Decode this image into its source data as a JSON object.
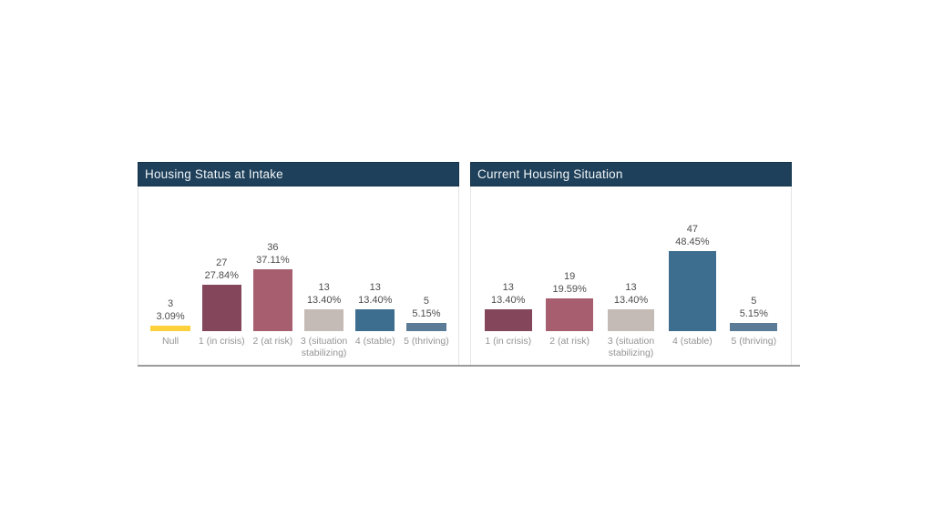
{
  "theme": {
    "header_bg": "#1e405a",
    "header_border": "#16334a",
    "header_text": "#f2f5f7",
    "chart_border": "#e5e5e5",
    "value_label_color": "#4d4d4d",
    "axis_label_color": "#949494",
    "divider_color": "#9b9b9b",
    "page_bg": "#ffffff"
  },
  "chart_data": [
    {
      "type": "bar",
      "title": "Housing Status at Intake",
      "categories": [
        "Null",
        "1 (in crisis)",
        "2 (at risk)",
        "3 (situation stabilizing)",
        "4 (stable)",
        "5 (thriving)"
      ],
      "values": [
        3,
        27,
        36,
        13,
        13,
        5
      ],
      "count_labels": [
        "3",
        "27",
        "36",
        "13",
        "13",
        "5"
      ],
      "pct_labels": [
        "3.09%",
        "27.84%",
        "37.11%",
        "13.40%",
        "13.40%",
        "5.15%"
      ],
      "bar_colors": [
        "#fcd13b",
        "#84465a",
        "#a75f70",
        "#c4bbb6",
        "#3d6e8f",
        "#5a7c96"
      ],
      "xlabel": "",
      "ylabel": "",
      "ylim": [
        0,
        50
      ],
      "grid": false,
      "legend": false,
      "y_axis_visible": false,
      "value_labels_position": "above-bar"
    },
    {
      "type": "bar",
      "title": "Current Housing Situation",
      "categories": [
        "1 (in crisis)",
        "2 (at risk)",
        "3 (situation stabilizing)",
        "4 (stable)",
        "5 (thriving)"
      ],
      "values": [
        13,
        19,
        13,
        47,
        5
      ],
      "count_labels": [
        "13",
        "19",
        "13",
        "47",
        "5"
      ],
      "pct_labels": [
        "13.40%",
        "19.59%",
        "13.40%",
        "48.45%",
        "5.15%"
      ],
      "bar_colors": [
        "#84465a",
        "#a75f70",
        "#c4bbb6",
        "#3d6e8f",
        "#5a7c96"
      ],
      "xlabel": "",
      "ylabel": "",
      "ylim": [
        0,
        50
      ],
      "grid": false,
      "legend": false,
      "y_axis_visible": false,
      "value_labels_position": "above-bar"
    }
  ]
}
